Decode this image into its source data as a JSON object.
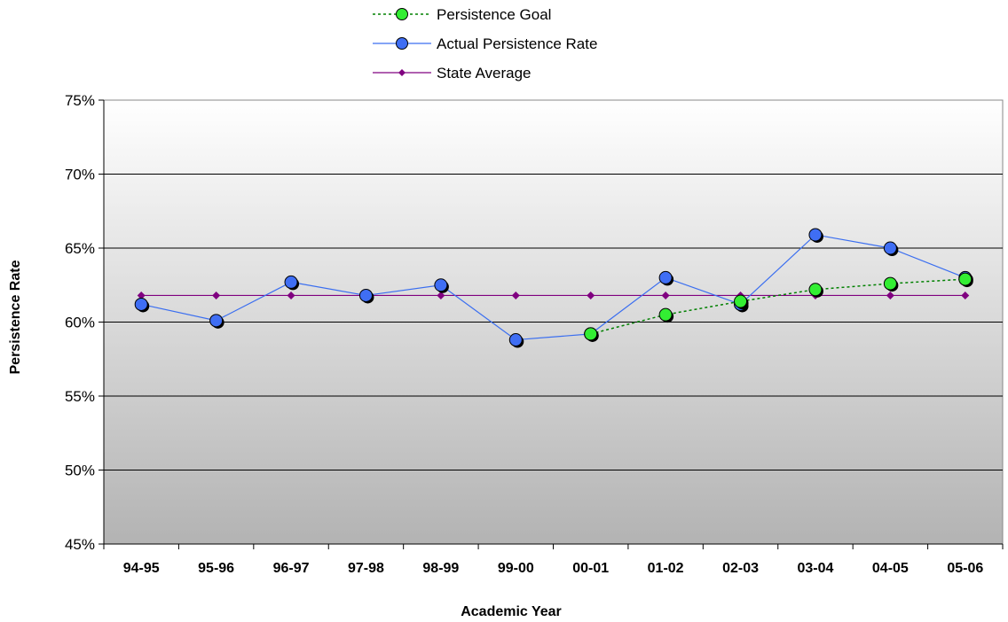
{
  "chart_data": {
    "type": "line",
    "title": "",
    "xlabel": "Academic Year",
    "ylabel": "Persistence Rate",
    "ylim": [
      45,
      75
    ],
    "ytick_step": 5,
    "ytick_suffix": "%",
    "categories": [
      "94-95",
      "95-96",
      "96-97",
      "97-98",
      "98-99",
      "99-00",
      "00-01",
      "01-02",
      "02-03",
      "03-04",
      "04-05",
      "05-06"
    ],
    "legend_position": "top-center",
    "grid": true,
    "series": [
      {
        "name": "Persistence Goal",
        "style": "dotted",
        "marker": "circle",
        "color": "#008000",
        "marker_color": "#33ee33",
        "values": [
          null,
          null,
          null,
          null,
          null,
          null,
          59.2,
          60.5,
          61.4,
          62.2,
          62.6,
          62.9
        ]
      },
      {
        "name": "Actual Persistence Rate",
        "style": "solid",
        "marker": "circle",
        "color": "#3a6ef0",
        "marker_color": "#3f6ef4",
        "values": [
          61.2,
          60.1,
          62.7,
          61.8,
          62.5,
          58.8,
          59.2,
          63.0,
          61.2,
          65.9,
          65.0,
          63.0
        ]
      },
      {
        "name": "State Average",
        "style": "solid",
        "marker": "diamond",
        "color": "#800080",
        "marker_color": "#800080",
        "values": [
          61.8,
          61.8,
          61.8,
          61.8,
          61.8,
          61.8,
          61.8,
          61.8,
          61.8,
          61.8,
          61.8,
          61.8
        ]
      }
    ]
  }
}
